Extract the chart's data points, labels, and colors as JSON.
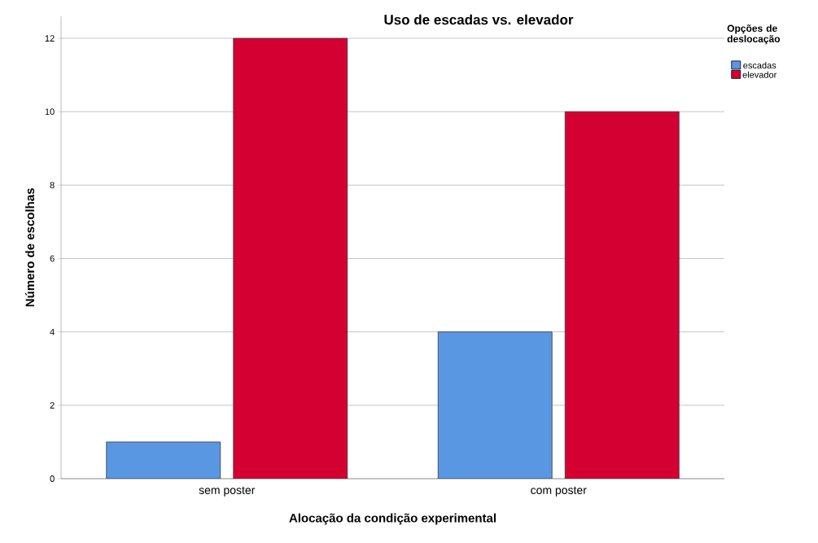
{
  "chart_data": {
    "type": "bar",
    "title": "Uso de escadas vs. elevador",
    "xlabel": "Alocação da condição experimental",
    "ylabel": "Número de escolhas",
    "legend_title": "Opções de deslocação",
    "categories": [
      "sem poster",
      "com poster"
    ],
    "series": [
      {
        "name": "escadas",
        "color": "#5a97e3",
        "values": [
          1,
          4
        ]
      },
      {
        "name": "elevador",
        "color": "#d50032",
        "values": [
          12,
          10
        ]
      }
    ],
    "ylim": [
      0,
      12.6
    ],
    "yticks": [
      0,
      2,
      4,
      6,
      8,
      10,
      12
    ],
    "grid": "y",
    "legend": "top right"
  }
}
